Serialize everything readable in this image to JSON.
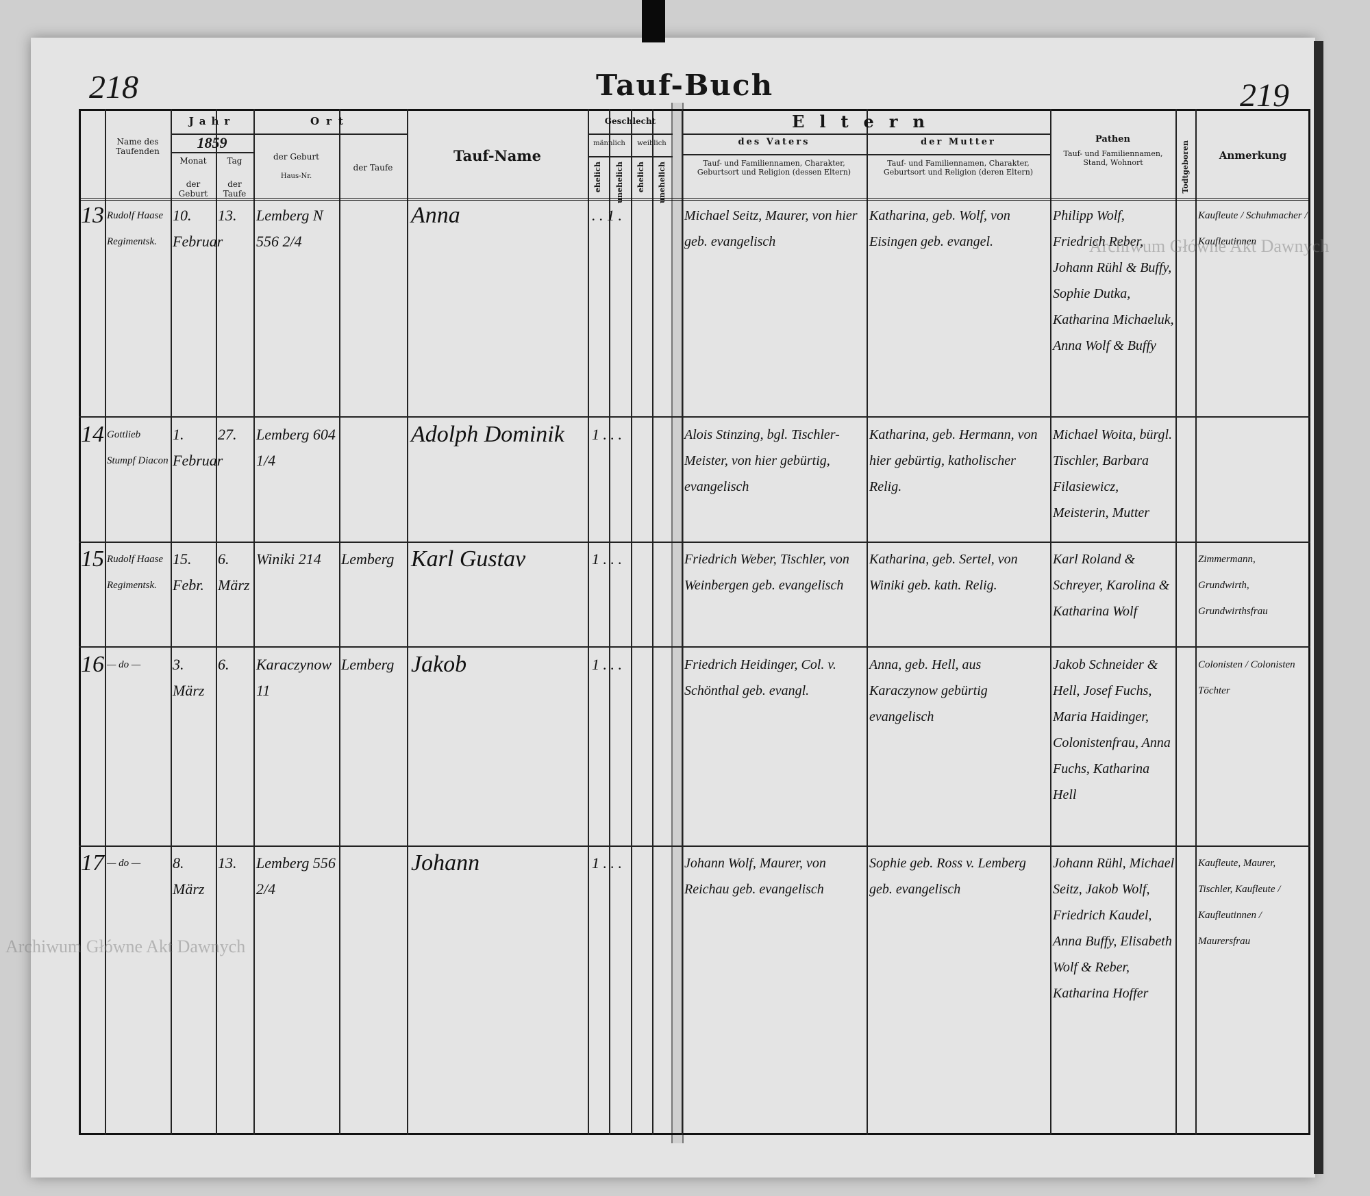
{
  "page_numbers": {
    "left": "218",
    "right": "219"
  },
  "title": "Tauf-Buch",
  "watermark": "Archiwum Główne Akt Dawnych",
  "headers": {
    "name": "Name des Taufenden",
    "jahr": "Jahr",
    "year": "1859",
    "monat": "Monat",
    "tag": "Tag",
    "der_geburt": "der Geburt",
    "der_taufe": "der Taufe",
    "ort": "Ort",
    "ort_geburt": "der Geburt",
    "haus_nr": "Haus-Nr.",
    "ort_taufe": "der Taufe",
    "tauf_name": "Tauf-Name",
    "geschlecht": "Geschlecht",
    "maennlich": "männlich",
    "weiblich": "weiblich",
    "ehelich": "ehelich",
    "unehelich": "unehelich",
    "eltern": "Eltern",
    "vater": "des Vaters",
    "mutter": "der Mutter",
    "vater_desc": "Tauf- und Familiennamen, Charakter, Geburtsort und Religion (dessen Eltern)",
    "mutter_desc": "Tauf- und Familiennamen, Charakter, Geburtsort und Religion (deren Eltern)",
    "pathen": "Pathen",
    "pathen_desc": "Tauf- und Familiennamen, Stand, Wohnort",
    "todtgeboren": "Todtgeboren",
    "anmerkung": "Anmerkung"
  },
  "entries": [
    {
      "no": "13",
      "taufender": "Rudolf Haase Regimentsk.",
      "monat": "10. Februar",
      "tag": "13.",
      "geburt": "Lemberg N 556 2/4",
      "taufe": "",
      "name": "Anna",
      "sex": ".  .  1  .",
      "vater": "Michael Seitz, Maurer, von hier geb. evangelisch",
      "mutter": "Katharina, geb. Wolf, von Eisingen geb. evangel.",
      "pathen": "Philipp Wolf, Friedrich Reber, Johann Rühl & Buffy, Sophie Dutka, Katharina Michaeluk, Anna Wolf & Buffy",
      "anmerkung": "Kaufleute / Schuhmacher / Kaufleutinnen"
    },
    {
      "no": "14",
      "taufender": "Gottlieb Stumpf Diacon",
      "monat": "1. Februar",
      "tag": "27.",
      "geburt": "Lemberg 604 1/4",
      "taufe": "",
      "name": "Adolph Dominik",
      "sex": "1  .  .  .",
      "vater": "Alois Stinzing, bgl. Tischler-Meister, von hier gebürtig, evangelisch",
      "mutter": "Katharina, geb. Hermann, von hier gebürtig, katholischer Relig.",
      "pathen": "Michael Woita, bürgl. Tischler, Barbara Filasiewicz, Meisterin, Mutter",
      "anmerkung": ""
    },
    {
      "no": "15",
      "taufender": "Rudolf Haase Regimentsk.",
      "monat": "15. Febr.",
      "tag": "6. März",
      "geburt": "Winiki 214",
      "taufe": "Lemberg",
      "name": "Karl Gustav",
      "sex": "1  .  .  .",
      "vater": "Friedrich Weber, Tischler, von Weinbergen geb. evangelisch",
      "mutter": "Katharina, geb. Sertel, von Winiki geb. kath. Relig.",
      "pathen": "Karl Roland & Schreyer, Karolina & Katharina Wolf",
      "anmerkung": "Zimmermann, Grundwirth, Grundwirthsfrau"
    },
    {
      "no": "16",
      "taufender": "— do —",
      "monat": "3. März",
      "tag": "6.",
      "geburt": "Karaczynow 11",
      "taufe": "Lemberg",
      "name": "Jakob",
      "sex": "1  .  .  .",
      "vater": "Friedrich Heidinger, Col. v. Schönthal geb. evangl.",
      "mutter": "Anna, geb. Hell, aus Karaczynow gebürtig evangelisch",
      "pathen": "Jakob Schneider & Hell, Josef Fuchs, Maria Haidinger, Colonistenfrau, Anna Fuchs, Katharina Hell",
      "anmerkung": "Colonisten / Colonisten Töchter"
    },
    {
      "no": "17",
      "taufender": "— do —",
      "monat": "8. März",
      "tag": "13.",
      "geburt": "Lemberg 556 2/4",
      "taufe": "",
      "name": "Johann",
      "sex": "1  .  .  .",
      "vater": "Johann Wolf, Maurer, von Reichau geb. evangelisch",
      "mutter": "Sophie geb. Ross v. Lemberg geb. evangelisch",
      "pathen": "Johann Rühl, Michael Seitz, Jakob Wolf, Friedrich Kaudel, Anna Buffy, Elisabeth Wolf & Reber, Katharina Hoffer",
      "anmerkung": "Kaufleute, Maurer, Tischler, Kaufleute / Kaufleutinnen / Maurersfrau"
    }
  ]
}
